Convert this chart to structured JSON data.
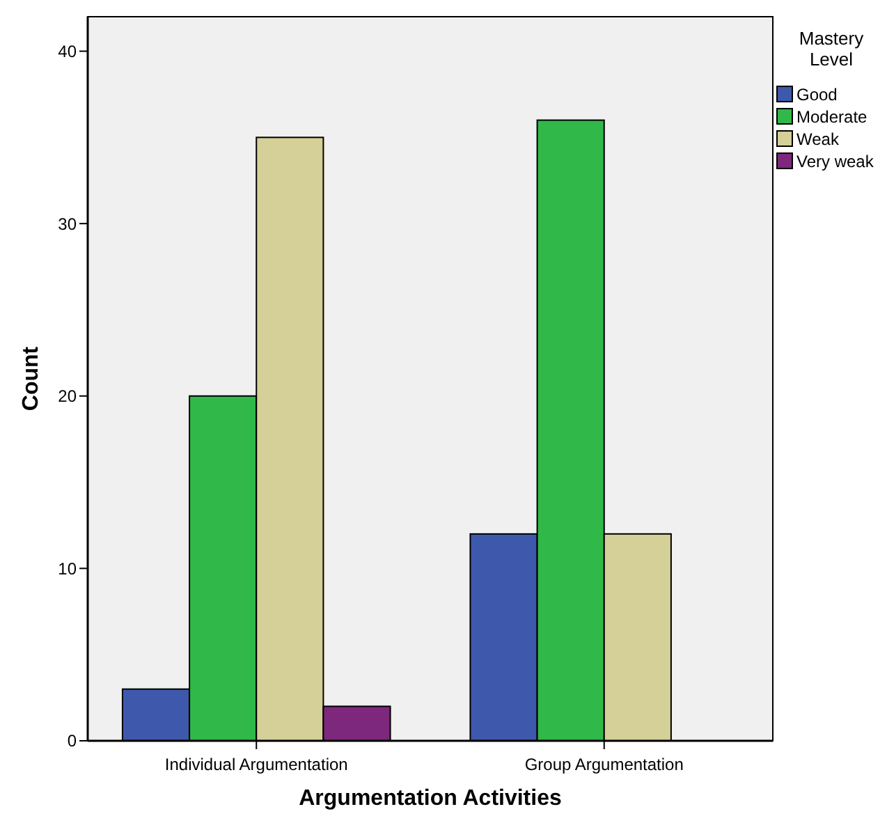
{
  "chart_data": {
    "type": "bar",
    "xlabel": "Argumentation Activities",
    "ylabel": "Count",
    "legend_title": "Mastery Level",
    "legend": "right",
    "categories": [
      "Individual Argumentation",
      "Group Argumentation"
    ],
    "series": [
      {
        "name": "Good",
        "color": "#3e58ac",
        "values": [
          3,
          12
        ]
      },
      {
        "name": "Moderate",
        "color": "#30b848",
        "values": [
          20,
          36
        ]
      },
      {
        "name": "Weak",
        "color": "#d4d097",
        "values": [
          35,
          12
        ]
      },
      {
        "name": "Very weak",
        "color": "#7d287c",
        "values": [
          2,
          0
        ]
      }
    ],
    "ylim": [
      0,
      42
    ],
    "yticks": [
      0,
      10,
      20,
      30,
      40
    ],
    "grid": false
  }
}
